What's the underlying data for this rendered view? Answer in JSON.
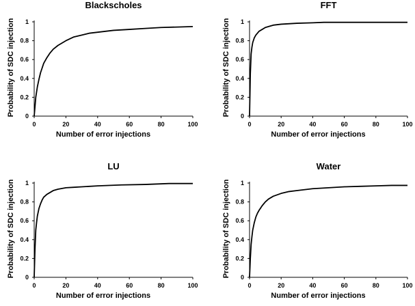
{
  "chart_data": [
    {
      "type": "line",
      "title": "Blackscholes",
      "xlabel": "Number of error injections",
      "ylabel": "Probability of SDC injection",
      "xlim": [
        0,
        100
      ],
      "ylim": [
        0,
        1
      ],
      "xticks": [
        "0",
        "20",
        "40",
        "60",
        "80",
        "100"
      ],
      "yticks": [
        "0",
        "0.2",
        "0.4",
        "0.6",
        "0.8",
        "1"
      ],
      "grid": false,
      "legend": "none",
      "series": [
        {
          "x": [
            0,
            1,
            2,
            3,
            4,
            5,
            6,
            8,
            10,
            12,
            15,
            18,
            20,
            25,
            30,
            35,
            40,
            50,
            60,
            70,
            80,
            90,
            100
          ],
          "y": [
            0,
            0.2,
            0.31,
            0.39,
            0.46,
            0.51,
            0.56,
            0.62,
            0.67,
            0.71,
            0.75,
            0.78,
            0.8,
            0.84,
            0.86,
            0.88,
            0.89,
            0.91,
            0.92,
            0.93,
            0.94,
            0.945,
            0.95
          ]
        }
      ]
    },
    {
      "type": "line",
      "title": "FFT",
      "xlabel": "Number of error injections",
      "ylabel": "Probability of SDC injection",
      "xlim": [
        0,
        100
      ],
      "ylim": [
        0,
        1
      ],
      "xticks": [
        "0",
        "20",
        "40",
        "60",
        "80",
        "100"
      ],
      "yticks": [
        "0",
        "0.2",
        "0.4",
        "0.6",
        "0.8",
        "1"
      ],
      "grid": false,
      "legend": "none",
      "series": [
        {
          "x": [
            0,
            0.5,
            1,
            1.5,
            2,
            3,
            4,
            5,
            6,
            8,
            10,
            12,
            15,
            20,
            30,
            40,
            47,
            60,
            80,
            100
          ],
          "y": [
            0,
            0.45,
            0.66,
            0.73,
            0.78,
            0.83,
            0.86,
            0.88,
            0.9,
            0.92,
            0.94,
            0.95,
            0.965,
            0.975,
            0.985,
            0.99,
            0.995,
            0.995,
            0.995,
            0.995
          ]
        }
      ]
    },
    {
      "type": "line",
      "title": "LU",
      "xlabel": "Number of error injections",
      "ylabel": "Probability of SDC injection",
      "xlim": [
        0,
        100
      ],
      "ylim": [
        0,
        1
      ],
      "xticks": [
        "0",
        "20",
        "40",
        "60",
        "80",
        "100"
      ],
      "yticks": [
        "0",
        "0.2",
        "0.4",
        "0.6",
        "0.8",
        "1"
      ],
      "grid": false,
      "legend": "none",
      "series": [
        {
          "x": [
            0,
            0.5,
            1,
            1.5,
            2,
            3,
            4,
            5,
            6,
            8,
            10,
            12,
            15,
            20,
            25,
            30,
            40,
            55,
            70,
            85,
            100
          ],
          "y": [
            0,
            0.3,
            0.5,
            0.58,
            0.65,
            0.73,
            0.78,
            0.82,
            0.85,
            0.88,
            0.9,
            0.92,
            0.935,
            0.95,
            0.955,
            0.96,
            0.97,
            0.98,
            0.985,
            0.995,
            0.995
          ]
        }
      ]
    },
    {
      "type": "line",
      "title": "Water",
      "xlabel": "Number of error injections",
      "ylabel": "Probability of SDC injection",
      "xlim": [
        0,
        100
      ],
      "ylim": [
        0,
        1
      ],
      "xticks": [
        "0",
        "20",
        "40",
        "60",
        "80",
        "100"
      ],
      "yticks": [
        "0",
        "0.2",
        "0.4",
        "0.6",
        "0.8",
        "1"
      ],
      "grid": false,
      "legend": "none",
      "series": [
        {
          "x": [
            0,
            0.5,
            1,
            1.5,
            2,
            3,
            4,
            5,
            6,
            8,
            10,
            12,
            15,
            20,
            25,
            30,
            40,
            50,
            60,
            70,
            80,
            90,
            100
          ],
          "y": [
            0,
            0.2,
            0.35,
            0.43,
            0.5,
            0.58,
            0.64,
            0.68,
            0.71,
            0.76,
            0.8,
            0.83,
            0.86,
            0.89,
            0.91,
            0.92,
            0.94,
            0.95,
            0.96,
            0.965,
            0.97,
            0.975,
            0.975
          ]
        }
      ]
    }
  ]
}
